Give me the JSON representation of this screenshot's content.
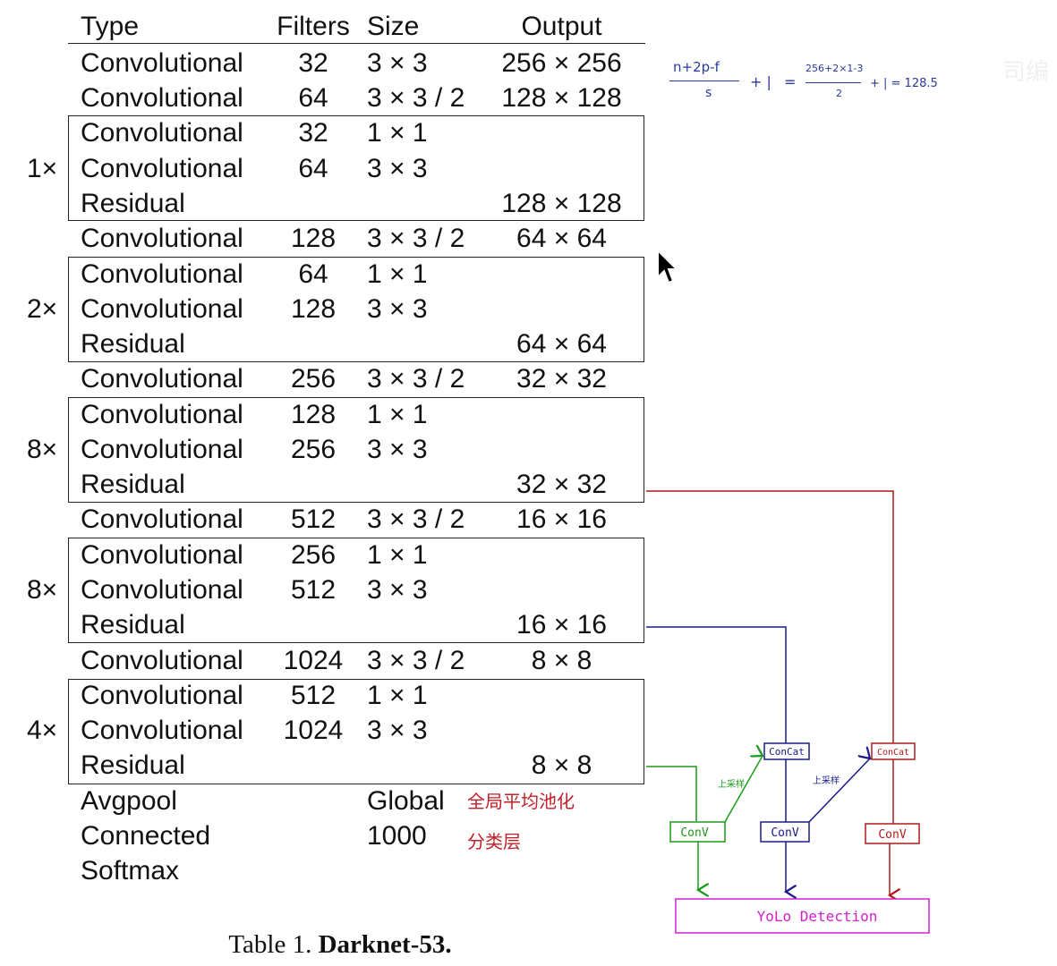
{
  "table": {
    "headers": {
      "type": "Type",
      "filters": "Filters",
      "size": "Size",
      "output": "Output"
    },
    "rows": [
      {
        "type": "Convolutional",
        "filters": "32",
        "size": "3 × 3",
        "output": "256 × 256"
      },
      {
        "type": "Convolutional",
        "filters": "64",
        "size": "3 × 3 / 2",
        "output": "128 × 128"
      },
      {
        "type": "Convolutional",
        "filters": "32",
        "size": "1 × 1",
        "output": ""
      },
      {
        "type": "Convolutional",
        "filters": "64",
        "size": "3 × 3",
        "output": ""
      },
      {
        "type": "Residual",
        "filters": "",
        "size": "",
        "output": "128 × 128"
      },
      {
        "type": "Convolutional",
        "filters": "128",
        "size": "3 × 3 / 2",
        "output": "64 × 64"
      },
      {
        "type": "Convolutional",
        "filters": "64",
        "size": "1 × 1",
        "output": ""
      },
      {
        "type": "Convolutional",
        "filters": "128",
        "size": "3 × 3",
        "output": ""
      },
      {
        "type": "Residual",
        "filters": "",
        "size": "",
        "output": "64 × 64"
      },
      {
        "type": "Convolutional",
        "filters": "256",
        "size": "3 × 3 / 2",
        "output": "32 × 32"
      },
      {
        "type": "Convolutional",
        "filters": "128",
        "size": "1 × 1",
        "output": ""
      },
      {
        "type": "Convolutional",
        "filters": "256",
        "size": "3 × 3",
        "output": ""
      },
      {
        "type": "Residual",
        "filters": "",
        "size": "",
        "output": "32 × 32"
      },
      {
        "type": "Convolutional",
        "filters": "512",
        "size": "3 × 3 / 2",
        "output": "16 × 16"
      },
      {
        "type": "Convolutional",
        "filters": "256",
        "size": "1 × 1",
        "output": ""
      },
      {
        "type": "Convolutional",
        "filters": "512",
        "size": "3 × 3",
        "output": ""
      },
      {
        "type": "Residual",
        "filters": "",
        "size": "",
        "output": "16 × 16"
      },
      {
        "type": "Convolutional",
        "filters": "1024",
        "size": "3 × 3 / 2",
        "output": "8 × 8"
      },
      {
        "type": "Convolutional",
        "filters": "512",
        "size": "1 × 1",
        "output": ""
      },
      {
        "type": "Convolutional",
        "filters": "1024",
        "size": "3 × 3",
        "output": ""
      },
      {
        "type": "Residual",
        "filters": "",
        "size": "",
        "output": "8 × 8"
      },
      {
        "type": "Avgpool",
        "filters": "",
        "size": "Global",
        "output": ""
      },
      {
        "type": "Connected",
        "filters": "",
        "size": "1000",
        "output": ""
      },
      {
        "type": "Softmax",
        "filters": "",
        "size": "",
        "output": ""
      }
    ],
    "multipliers": [
      "1×",
      "2×",
      "8×",
      "8×",
      "4×"
    ]
  },
  "caption": {
    "prefix": "Table 1. ",
    "title": "Darknet-53."
  },
  "notes": {
    "avgpool": "全局平均池化",
    "connected": "分类层"
  },
  "formula": {
    "lhs_num": "n+2p-f",
    "lhs_den": "s",
    "plus1": "+ |",
    "eq": "=",
    "rhs_num": "256+2×1-3",
    "rhs_den": "2",
    "result": "+ | = 128.5"
  },
  "diagram": {
    "concat_label": "ConCat",
    "conv_label": "ConV",
    "upsample_label": "上采样",
    "detection_label": "YoLo Detection",
    "colors": {
      "green": "#1a9a1a",
      "blue": "#1a1a8a",
      "red": "#b01a1a",
      "magenta": "#d020d0"
    }
  },
  "watermark": "司编",
  "icons": {
    "cursor": "mouse-pointer-icon"
  }
}
